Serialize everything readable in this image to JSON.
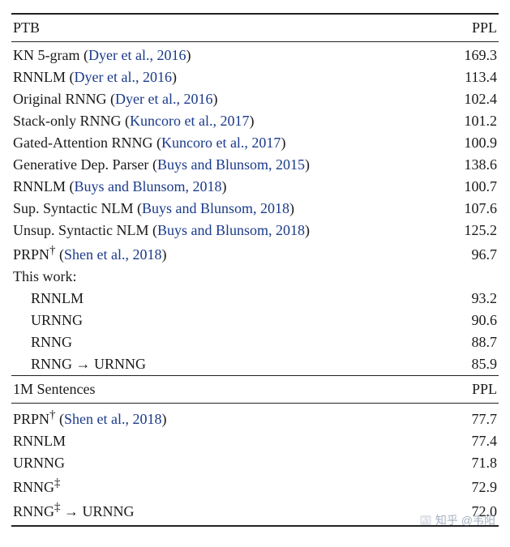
{
  "panels": [
    {
      "header_left": "PTB",
      "header_right": "PPL",
      "rows": [
        {
          "model": "KN 5-gram",
          "cite": "Dyer et al., 2016",
          "ppl": "169.3"
        },
        {
          "model": "RNNLM",
          "cite": "Dyer et al., 2016",
          "ppl": "113.4"
        },
        {
          "model": "Original RNNG",
          "cite": "Dyer et al., 2016",
          "ppl": "102.4"
        },
        {
          "model": "Stack-only RNNG",
          "cite": "Kuncoro et al., 2017",
          "ppl": "101.2"
        },
        {
          "model": "Gated-Attention RNNG",
          "cite": "Kuncoro et al., 2017",
          "ppl": "100.9"
        },
        {
          "model": "Generative Dep. Parser",
          "cite": "Buys and Blunsom, 2015",
          "ppl": "138.6"
        },
        {
          "model": "RNNLM",
          "cite": "Buys and Blunsom, 2018",
          "ppl": "100.7"
        },
        {
          "model": "Sup. Syntactic NLM",
          "cite": "Buys and Blunsom, 2018",
          "ppl": "107.6"
        },
        {
          "model": "Unsup. Syntactic NLM",
          "cite": "Buys and Blunsom, 2018",
          "ppl": "125.2"
        },
        {
          "model": "PRPN",
          "sup": "†",
          "cite": "Shen et al., 2018",
          "ppl": "96.7"
        },
        {
          "model": "This work:",
          "ppl": ""
        },
        {
          "model": "RNNLM",
          "indent": true,
          "ppl": "93.2"
        },
        {
          "model": "URNNG",
          "indent": true,
          "ppl": "90.6"
        },
        {
          "model": "RNNG",
          "indent": true,
          "ppl": "88.7"
        },
        {
          "model": "RNNG → URNNG",
          "indent": true,
          "ppl": "85.9"
        }
      ]
    },
    {
      "header_left": "1M Sentences",
      "header_right": "PPL",
      "rows": [
        {
          "model": "PRPN",
          "sup": "†",
          "cite": "Shen et al., 2018",
          "ppl": "77.7"
        },
        {
          "model": "RNNLM",
          "ppl": "77.4"
        },
        {
          "model": "URNNG",
          "ppl": "71.8"
        },
        {
          "model": "RNNG",
          "sup": "‡",
          "ppl": "72.9"
        },
        {
          "model": "RNNG",
          "sup": "‡",
          "tail": " → URNNG",
          "ppl": "72.0"
        }
      ]
    }
  ],
  "watermark": "知乎 @韦阳",
  "colors": {
    "text": "#1a1a1a",
    "citation": "#1a3a8a",
    "rule": "#222222",
    "background": "#ffffff"
  },
  "fonts": {
    "body_family": "Times New Roman",
    "body_size_pt": 14
  }
}
